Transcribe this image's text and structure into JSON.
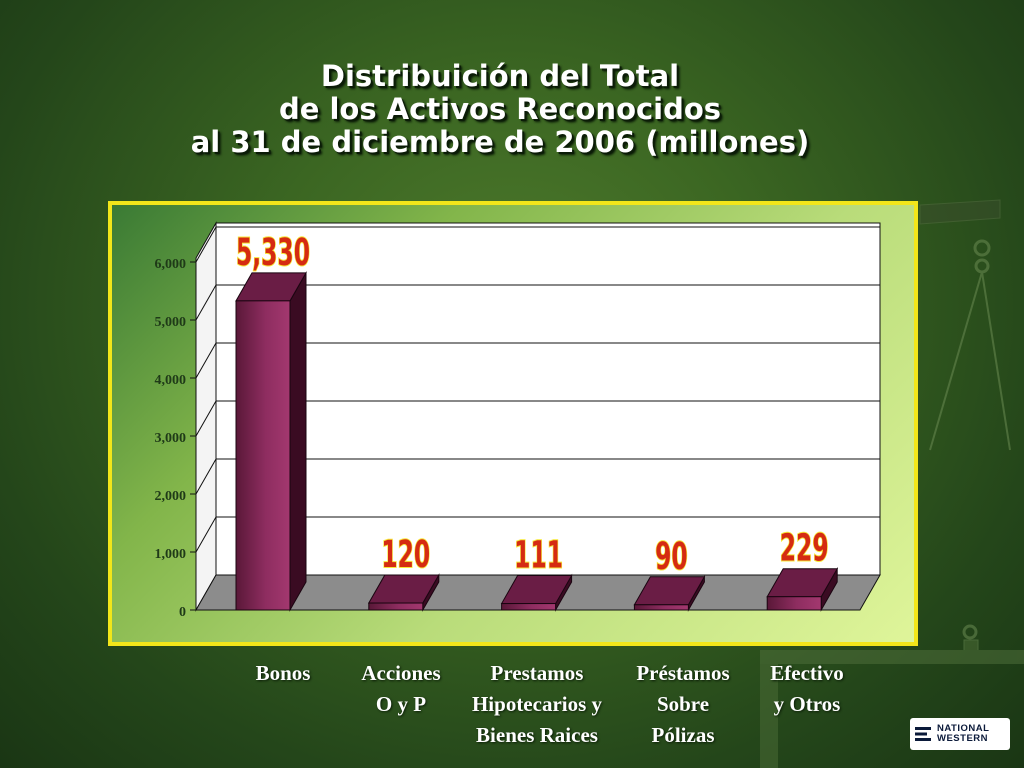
{
  "title": {
    "line1": "Distribuición del Total",
    "line2": "de los Activos Reconocidos",
    "line3": "al 31 de diciembre de 2006 (millones)"
  },
  "chart_data": {
    "type": "bar",
    "title": "Distribuición del Total de los Activos Reconocidos al 31 de diciembre de 2006 (millones)",
    "categories": [
      [
        "Bonos"
      ],
      [
        "Acciones",
        "O y P"
      ],
      [
        "Prestamos",
        "Hipotecarios y",
        "Bienes Raices"
      ],
      [
        "Préstamos",
        "Sobre",
        "Pólizas"
      ],
      [
        "Efectivo",
        "y Otros"
      ]
    ],
    "values": [
      5330,
      120,
      111,
      90,
      229
    ],
    "data_labels": [
      "5,330",
      "120",
      "111",
      "90",
      "229"
    ],
    "ylim": [
      0,
      6000
    ],
    "yticks": [
      0,
      1000,
      2000,
      3000,
      4000,
      5000,
      6000
    ],
    "ytick_labels": [
      "0",
      "1,000",
      "2,000",
      "3,000",
      "4,000",
      "5,000",
      "6,000"
    ],
    "grid": true,
    "three_d": true,
    "colors": {
      "bar_front": "#8e2d60",
      "bar_top": "#6a1d45",
      "bar_side": "#3a0b22",
      "label_fill": "#d52b12",
      "label_stroke": "#f7e93a",
      "panel_border": "#f2e61a",
      "floor": "#8c8c8c"
    }
  },
  "logo": {
    "line1": "NATIONAL",
    "line2": "WESTERN"
  }
}
